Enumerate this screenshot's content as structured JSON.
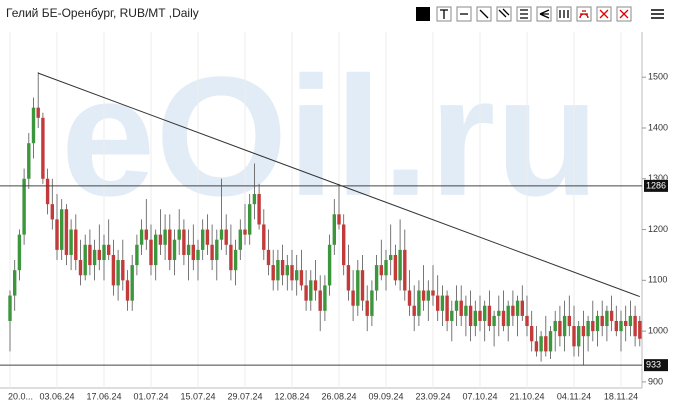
{
  "chart_data": {
    "type": "candlestick",
    "title": "Гелий БЕ-Оренбург, RUB/MT ,Daily",
    "watermark": "eOil.ru",
    "up_color": "#3c963c",
    "down_color": "#c23a3a",
    "categories": [
      "20.0...",
      null,
      null,
      null,
      null,
      null,
      null,
      null,
      null,
      null,
      "03.06.24",
      null,
      null,
      null,
      null,
      null,
      null,
      null,
      null,
      null,
      "17.06.24",
      null,
      null,
      null,
      null,
      null,
      null,
      null,
      null,
      null,
      "01.07.24",
      null,
      null,
      null,
      null,
      null,
      null,
      null,
      null,
      null,
      "15.07.24",
      null,
      null,
      null,
      null,
      null,
      null,
      null,
      null,
      null,
      "29.07.24",
      null,
      null,
      null,
      null,
      null,
      null,
      null,
      null,
      null,
      "12.08.24",
      null,
      null,
      null,
      null,
      null,
      null,
      null,
      null,
      null,
      "26.08.24",
      null,
      null,
      null,
      null,
      null,
      null,
      null,
      null,
      null,
      "09.09.24",
      null,
      null,
      null,
      null,
      null,
      null,
      null,
      null,
      null,
      "23.09.24",
      null,
      null,
      null,
      null,
      null,
      null,
      null,
      null,
      null,
      "07.10.24",
      null,
      null,
      null,
      null,
      null,
      null,
      null,
      null,
      null,
      "21.10.24",
      null,
      null,
      null,
      null,
      null,
      null,
      null,
      null,
      null,
      "04.11.24",
      null,
      null,
      null,
      null,
      null,
      null,
      null,
      null,
      null,
      "18.11.24",
      null,
      null,
      null,
      null
    ],
    "candles": [
      [
        1020,
        1080,
        960,
        1070
      ],
      [
        1070,
        1140,
        1040,
        1120
      ],
      [
        1120,
        1200,
        1100,
        1190
      ],
      [
        1190,
        1320,
        1170,
        1300
      ],
      [
        1300,
        1390,
        1280,
        1370
      ],
      [
        1370,
        1460,
        1340,
        1440
      ],
      [
        1440,
        1510,
        1400,
        1420
      ],
      [
        1420,
        1430,
        1290,
        1300
      ],
      [
        1300,
        1320,
        1230,
        1250
      ],
      [
        1250,
        1300,
        1200,
        1220
      ],
      [
        1220,
        1270,
        1140,
        1160
      ],
      [
        1160,
        1260,
        1140,
        1240
      ],
      [
        1240,
        1250,
        1130,
        1150
      ],
      [
        1150,
        1220,
        1120,
        1200
      ],
      [
        1200,
        1230,
        1120,
        1140
      ],
      [
        1140,
        1180,
        1090,
        1110
      ],
      [
        1110,
        1190,
        1100,
        1170
      ],
      [
        1170,
        1200,
        1110,
        1130
      ],
      [
        1130,
        1180,
        1100,
        1160
      ],
      [
        1160,
        1210,
        1120,
        1140
      ],
      [
        1140,
        1190,
        1100,
        1170
      ],
      [
        1170,
        1220,
        1140,
        1150
      ],
      [
        1150,
        1180,
        1070,
        1090
      ],
      [
        1090,
        1160,
        1060,
        1140
      ],
      [
        1140,
        1180,
        1080,
        1100
      ],
      [
        1100,
        1120,
        1040,
        1060
      ],
      [
        1060,
        1150,
        1040,
        1130
      ],
      [
        1130,
        1190,
        1110,
        1170
      ],
      [
        1170,
        1220,
        1150,
        1200
      ],
      [
        1200,
        1260,
        1160,
        1180
      ],
      [
        1180,
        1210,
        1110,
        1130
      ],
      [
        1130,
        1200,
        1100,
        1190
      ],
      [
        1190,
        1240,
        1150,
        1170
      ],
      [
        1170,
        1230,
        1140,
        1200
      ],
      [
        1200,
        1230,
        1120,
        1140
      ],
      [
        1140,
        1200,
        1110,
        1180
      ],
      [
        1180,
        1240,
        1150,
        1200
      ],
      [
        1200,
        1220,
        1130,
        1150
      ],
      [
        1150,
        1200,
        1100,
        1170
      ],
      [
        1170,
        1210,
        1120,
        1140
      ],
      [
        1140,
        1180,
        1100,
        1160
      ],
      [
        1160,
        1220,
        1140,
        1200
      ],
      [
        1200,
        1230,
        1150,
        1170
      ],
      [
        1170,
        1210,
        1120,
        1140
      ],
      [
        1140,
        1200,
        1100,
        1180
      ],
      [
        1180,
        1300,
        1160,
        1200
      ],
      [
        1200,
        1230,
        1150,
        1170
      ],
      [
        1170,
        1210,
        1100,
        1120
      ],
      [
        1120,
        1180,
        1090,
        1160
      ],
      [
        1160,
        1220,
        1140,
        1200
      ],
      [
        1200,
        1250,
        1170,
        1190
      ],
      [
        1190,
        1270,
        1170,
        1250
      ],
      [
        1250,
        1330,
        1220,
        1270
      ],
      [
        1270,
        1290,
        1200,
        1210
      ],
      [
        1210,
        1240,
        1140,
        1160
      ],
      [
        1160,
        1200,
        1110,
        1130
      ],
      [
        1130,
        1160,
        1080,
        1100
      ],
      [
        1100,
        1160,
        1080,
        1140
      ],
      [
        1140,
        1170,
        1090,
        1110
      ],
      [
        1110,
        1150,
        1080,
        1130
      ],
      [
        1130,
        1160,
        1080,
        1100
      ],
      [
        1100,
        1150,
        1070,
        1120
      ],
      [
        1120,
        1160,
        1080,
        1090
      ],
      [
        1090,
        1120,
        1040,
        1060
      ],
      [
        1060,
        1120,
        1040,
        1100
      ],
      [
        1100,
        1140,
        1060,
        1080
      ],
      [
        1080,
        1110,
        1000,
        1040
      ],
      [
        1040,
        1110,
        1020,
        1090
      ],
      [
        1090,
        1190,
        1070,
        1170
      ],
      [
        1170,
        1260,
        1150,
        1230
      ],
      [
        1230,
        1290,
        1200,
        1210
      ],
      [
        1210,
        1230,
        1110,
        1130
      ],
      [
        1130,
        1170,
        1060,
        1080
      ],
      [
        1080,
        1120,
        1020,
        1050
      ],
      [
        1050,
        1140,
        1030,
        1120
      ],
      [
        1120,
        1150,
        1040,
        1060
      ],
      [
        1060,
        1090,
        1000,
        1030
      ],
      [
        1030,
        1100,
        1010,
        1080
      ],
      [
        1080,
        1150,
        1060,
        1130
      ],
      [
        1130,
        1180,
        1100,
        1110
      ],
      [
        1110,
        1160,
        1080,
        1140
      ],
      [
        1140,
        1210,
        1110,
        1150
      ],
      [
        1150,
        1170,
        1090,
        1100
      ],
      [
        1100,
        1220,
        1080,
        1160
      ],
      [
        1160,
        1200,
        1060,
        1080
      ],
      [
        1080,
        1120,
        1030,
        1050
      ],
      [
        1050,
        1090,
        1000,
        1030
      ],
      [
        1030,
        1100,
        1010,
        1080
      ],
      [
        1080,
        1130,
        1040,
        1060
      ],
      [
        1060,
        1100,
        1020,
        1080
      ],
      [
        1080,
        1130,
        1050,
        1070
      ],
      [
        1070,
        1110,
        1020,
        1040
      ],
      [
        1040,
        1090,
        1010,
        1070
      ],
      [
        1070,
        1080,
        1000,
        1020
      ],
      [
        1020,
        1060,
        980,
        1040
      ],
      [
        1040,
        1090,
        1010,
        1060
      ],
      [
        1060,
        1090,
        1010,
        1030
      ],
      [
        1030,
        1070,
        990,
        1050
      ],
      [
        1050,
        1080,
        980,
        1010
      ],
      [
        1010,
        1060,
        990,
        1040
      ],
      [
        1040,
        1070,
        1000,
        1020
      ],
      [
        1020,
        1060,
        980,
        1050
      ],
      [
        1050,
        1080,
        1000,
        1010
      ],
      [
        1010,
        1040,
        970,
        1030
      ],
      [
        1030,
        1070,
        990,
        1040
      ],
      [
        1040,
        1080,
        1000,
        1010
      ],
      [
        1010,
        1060,
        980,
        1050
      ],
      [
        1050,
        1080,
        1010,
        1030
      ],
      [
        1030,
        1070,
        990,
        1060
      ],
      [
        1060,
        1090,
        1020,
        1030
      ],
      [
        1030,
        1070,
        990,
        1010
      ],
      [
        1010,
        1040,
        960,
        980
      ],
      [
        980,
        1010,
        950,
        960
      ],
      [
        960,
        1000,
        940,
        990
      ],
      [
        990,
        1030,
        950,
        960
      ],
      [
        960,
        1010,
        945,
        1000
      ],
      [
        1000,
        1040,
        960,
        1020
      ],
      [
        1020,
        1050,
        970,
        990
      ],
      [
        990,
        1060,
        960,
        1030
      ],
      [
        1030,
        1070,
        990,
        1010
      ],
      [
        1010,
        1050,
        950,
        970
      ],
      [
        970,
        1020,
        950,
        1010
      ],
      [
        1010,
        1040,
        933,
        990
      ],
      [
        990,
        1030,
        960,
        1020
      ],
      [
        1020,
        1060,
        980,
        1000
      ],
      [
        1000,
        1040,
        970,
        1030
      ],
      [
        1030,
        1060,
        990,
        1010
      ],
      [
        1010,
        1050,
        980,
        1040
      ],
      [
        1040,
        1070,
        1000,
        1020
      ],
      [
        1020,
        1050,
        990,
        1000
      ],
      [
        1000,
        1040,
        960,
        1020
      ],
      [
        1020,
        1050,
        980,
        1010
      ],
      [
        1010,
        1060,
        990,
        1030
      ],
      [
        1030,
        1050,
        970,
        990
      ],
      [
        1020,
        1030,
        970,
        985
      ]
    ],
    "ylim": [
      888,
      1589
    ],
    "yticks": [
      900,
      1000,
      1100,
      1200,
      1300,
      1400,
      1500
    ],
    "hlines": [
      1286,
      933
    ],
    "trendline": [
      [
        6,
        1508
      ],
      [
        134,
        1068
      ]
    ]
  }
}
